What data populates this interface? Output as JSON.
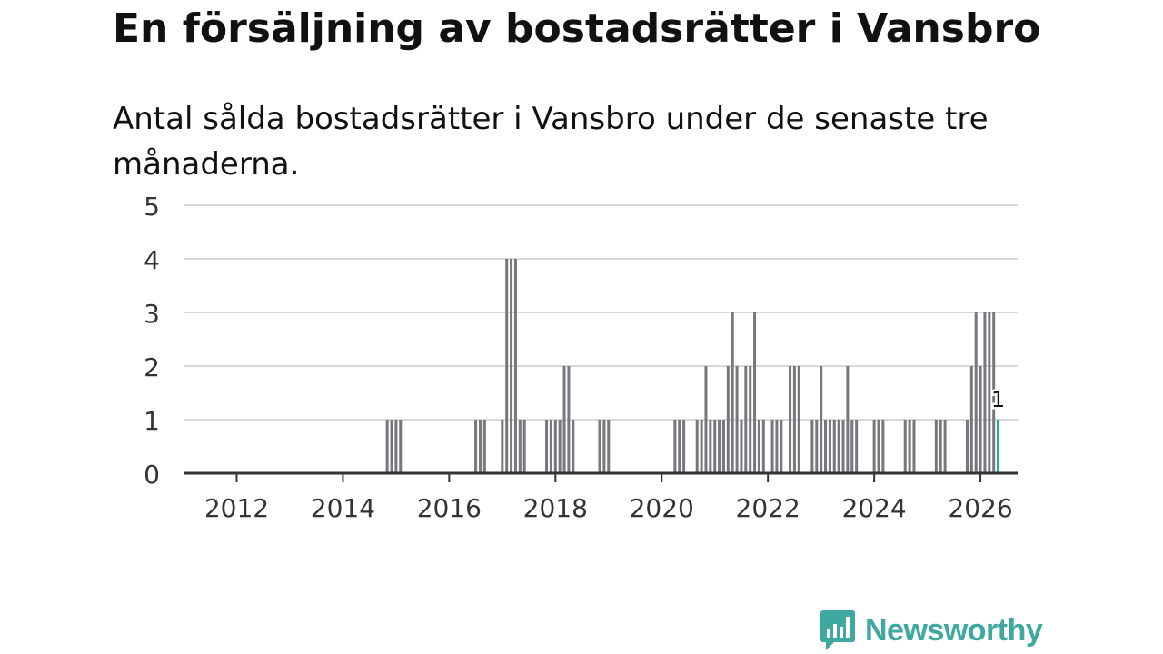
{
  "header": {
    "title": "En försäljning av bostadsrätter i Vansbro",
    "subtitle": "Antal sålda bostadsrätter i Vansbro under de senaste tre månaderna."
  },
  "brand": {
    "name": "Newsworthy",
    "color": "#3fa9a0",
    "icon": "newsworthy-logo-icon"
  },
  "chart_data": {
    "type": "bar",
    "title": "En försäljning av bostadsrätter i Vansbro",
    "subtitle": "Antal sålda bostadsrätter i Vansbro under de senaste tre månaderna.",
    "xlabel": "",
    "ylabel": "",
    "ylim": [
      0,
      5
    ],
    "yticks": [
      "0",
      "1",
      "2",
      "3",
      "4",
      "5"
    ],
    "xticks": [
      "2012",
      "2014",
      "2016",
      "2018",
      "2020",
      "2022",
      "2024",
      "2026"
    ],
    "grid": true,
    "bar_color": "#77777d",
    "highlight_color": "#1fa7a0",
    "highlight_label": "1",
    "series": [
      {
        "values": [
          {
            "date": "2014-11",
            "value": 1
          },
          {
            "date": "2014-12",
            "value": 1
          },
          {
            "date": "2015-01",
            "value": 1
          },
          {
            "date": "2015-02",
            "value": 1
          },
          {
            "date": "2016-07",
            "value": 1
          },
          {
            "date": "2016-08",
            "value": 1
          },
          {
            "date": "2016-09",
            "value": 1
          },
          {
            "date": "2017-01",
            "value": 1
          },
          {
            "date": "2017-02",
            "value": 4
          },
          {
            "date": "2017-03",
            "value": 4
          },
          {
            "date": "2017-04",
            "value": 4
          },
          {
            "date": "2017-05",
            "value": 1
          },
          {
            "date": "2017-06",
            "value": 1
          },
          {
            "date": "2017-11",
            "value": 1
          },
          {
            "date": "2017-12",
            "value": 1
          },
          {
            "date": "2018-01",
            "value": 1
          },
          {
            "date": "2018-02",
            "value": 1
          },
          {
            "date": "2018-03",
            "value": 2
          },
          {
            "date": "2018-04",
            "value": 2
          },
          {
            "date": "2018-05",
            "value": 1
          },
          {
            "date": "2018-11",
            "value": 1
          },
          {
            "date": "2018-12",
            "value": 1
          },
          {
            "date": "2019-01",
            "value": 1
          },
          {
            "date": "2020-04",
            "value": 1
          },
          {
            "date": "2020-05",
            "value": 1
          },
          {
            "date": "2020-06",
            "value": 1
          },
          {
            "date": "2020-09",
            "value": 1
          },
          {
            "date": "2020-10",
            "value": 1
          },
          {
            "date": "2020-11",
            "value": 2
          },
          {
            "date": "2020-12",
            "value": 1
          },
          {
            "date": "2021-01",
            "value": 1
          },
          {
            "date": "2021-02",
            "value": 1
          },
          {
            "date": "2021-03",
            "value": 1
          },
          {
            "date": "2021-04",
            "value": 2
          },
          {
            "date": "2021-05",
            "value": 3
          },
          {
            "date": "2021-06",
            "value": 2
          },
          {
            "date": "2021-07",
            "value": 1
          },
          {
            "date": "2021-08",
            "value": 2
          },
          {
            "date": "2021-09",
            "value": 2
          },
          {
            "date": "2021-10",
            "value": 3
          },
          {
            "date": "2021-11",
            "value": 1
          },
          {
            "date": "2021-12",
            "value": 1
          },
          {
            "date": "2022-02",
            "value": 1
          },
          {
            "date": "2022-03",
            "value": 1
          },
          {
            "date": "2022-04",
            "value": 1
          },
          {
            "date": "2022-06",
            "value": 2
          },
          {
            "date": "2022-07",
            "value": 2
          },
          {
            "date": "2022-08",
            "value": 2
          },
          {
            "date": "2022-11",
            "value": 1
          },
          {
            "date": "2022-12",
            "value": 1
          },
          {
            "date": "2023-01",
            "value": 2
          },
          {
            "date": "2023-02",
            "value": 1
          },
          {
            "date": "2023-03",
            "value": 1
          },
          {
            "date": "2023-04",
            "value": 1
          },
          {
            "date": "2023-05",
            "value": 1
          },
          {
            "date": "2023-06",
            "value": 1
          },
          {
            "date": "2023-07",
            "value": 2
          },
          {
            "date": "2023-08",
            "value": 1
          },
          {
            "date": "2023-09",
            "value": 1
          },
          {
            "date": "2024-01",
            "value": 1
          },
          {
            "date": "2024-02",
            "value": 1
          },
          {
            "date": "2024-03",
            "value": 1
          },
          {
            "date": "2024-08",
            "value": 1
          },
          {
            "date": "2024-09",
            "value": 1
          },
          {
            "date": "2024-10",
            "value": 1
          },
          {
            "date": "2025-03",
            "value": 1
          },
          {
            "date": "2025-04",
            "value": 1
          },
          {
            "date": "2025-05",
            "value": 1
          },
          {
            "date": "2025-10",
            "value": 1
          },
          {
            "date": "2025-11",
            "value": 2
          },
          {
            "date": "2025-12",
            "value": 3
          },
          {
            "date": "2026-01",
            "value": 2
          },
          {
            "date": "2026-02",
            "value": 3
          },
          {
            "date": "2026-03",
            "value": 3
          },
          {
            "date": "2026-04",
            "value": 3
          },
          {
            "date": "2026-05",
            "value": 1,
            "highlight": true
          }
        ]
      }
    ]
  }
}
